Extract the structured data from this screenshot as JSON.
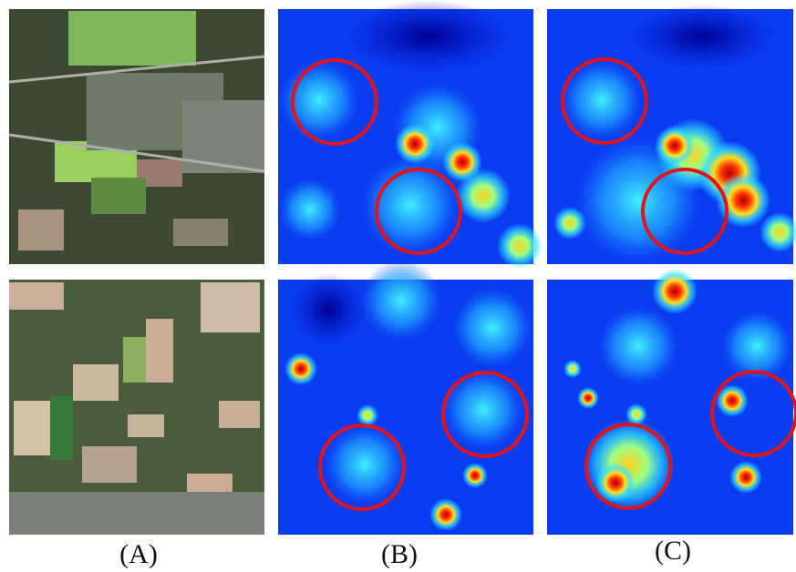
{
  "labels": [
    "(A)",
    "(B)",
    "(C)"
  ]
}
